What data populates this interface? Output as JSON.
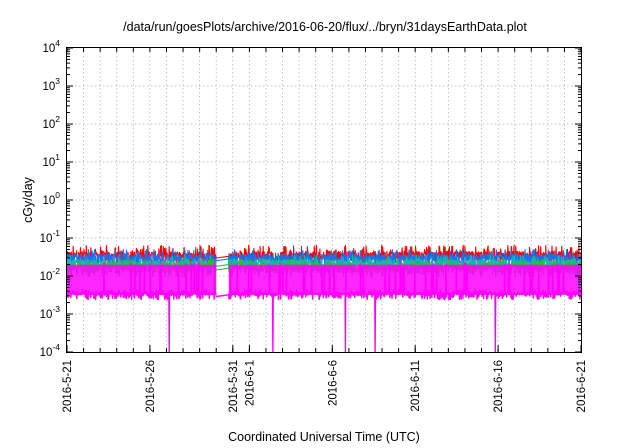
{
  "chart_data": {
    "type": "line",
    "title": "/data/run/goesPlots/archive/2016-06-20/flux/../bryn/31daysEarthData.plot",
    "xlabel": "Coordinated Universal Time (UTC)",
    "ylabel": "cGy/day",
    "yscale": "log",
    "ylim": [
      0.0001,
      10000
    ],
    "xlim": [
      "2016-05-21",
      "2016-06-21"
    ],
    "grid": true,
    "legend": "none",
    "y_ticks": [
      {
        "value": 0.0001,
        "base": "10",
        "exp": "-4"
      },
      {
        "value": 0.001,
        "base": "10",
        "exp": "-3"
      },
      {
        "value": 0.01,
        "base": "10",
        "exp": "-2"
      },
      {
        "value": 0.1,
        "base": "10",
        "exp": "-1"
      },
      {
        "value": 1,
        "base": "10",
        "exp": "0"
      },
      {
        "value": 10,
        "base": "10",
        "exp": "1"
      },
      {
        "value": 100,
        "base": "10",
        "exp": "2"
      },
      {
        "value": 1000,
        "base": "10",
        "exp": "3"
      },
      {
        "value": 10000,
        "base": "10",
        "exp": "4"
      }
    ],
    "x_ticks": [
      {
        "date": "2016-05-21",
        "label": "2016-5-21"
      },
      {
        "date": "2016-05-26",
        "label": "2016-5-26"
      },
      {
        "date": "2016-05-31",
        "label": "2016-5-31"
      },
      {
        "date": "2016-06-01",
        "label": "2016-6-1"
      },
      {
        "date": "2016-06-06",
        "label": "2016-6-6"
      },
      {
        "date": "2016-06-11",
        "label": "2016-6-11"
      },
      {
        "date": "2016-06-16",
        "label": "2016-6-16"
      },
      {
        "date": "2016-06-21",
        "label": "2016-6-21"
      }
    ],
    "data_gap": [
      "2016-05-30",
      "2016-05-30T18:00"
    ],
    "series": [
      {
        "color": "#ff0000",
        "baseline": 0.033,
        "peak": 0.065,
        "trough": 0.02
      },
      {
        "color": "#1f6fe8",
        "baseline": 0.028,
        "peak": 0.05,
        "trough": 0.017
      },
      {
        "color": "#14b8b0",
        "baseline": 0.02,
        "peak": 0.035,
        "trough": 0.012
      },
      {
        "color": "#23c423",
        "baseline": 0.016,
        "peak": 0.028,
        "trough": 0.01
      },
      {
        "color": "#ff00ff",
        "baseline": 0.0032,
        "peak": 0.022,
        "trough": 0.003,
        "dropouts": [
          "2016-05-27T04:00",
          "2016-06-02T10:00",
          "2016-06-06T19:00",
          "2016-06-08T14:00",
          "2016-06-15T20:00"
        ],
        "dropout_value": 0.0001
      }
    ]
  }
}
